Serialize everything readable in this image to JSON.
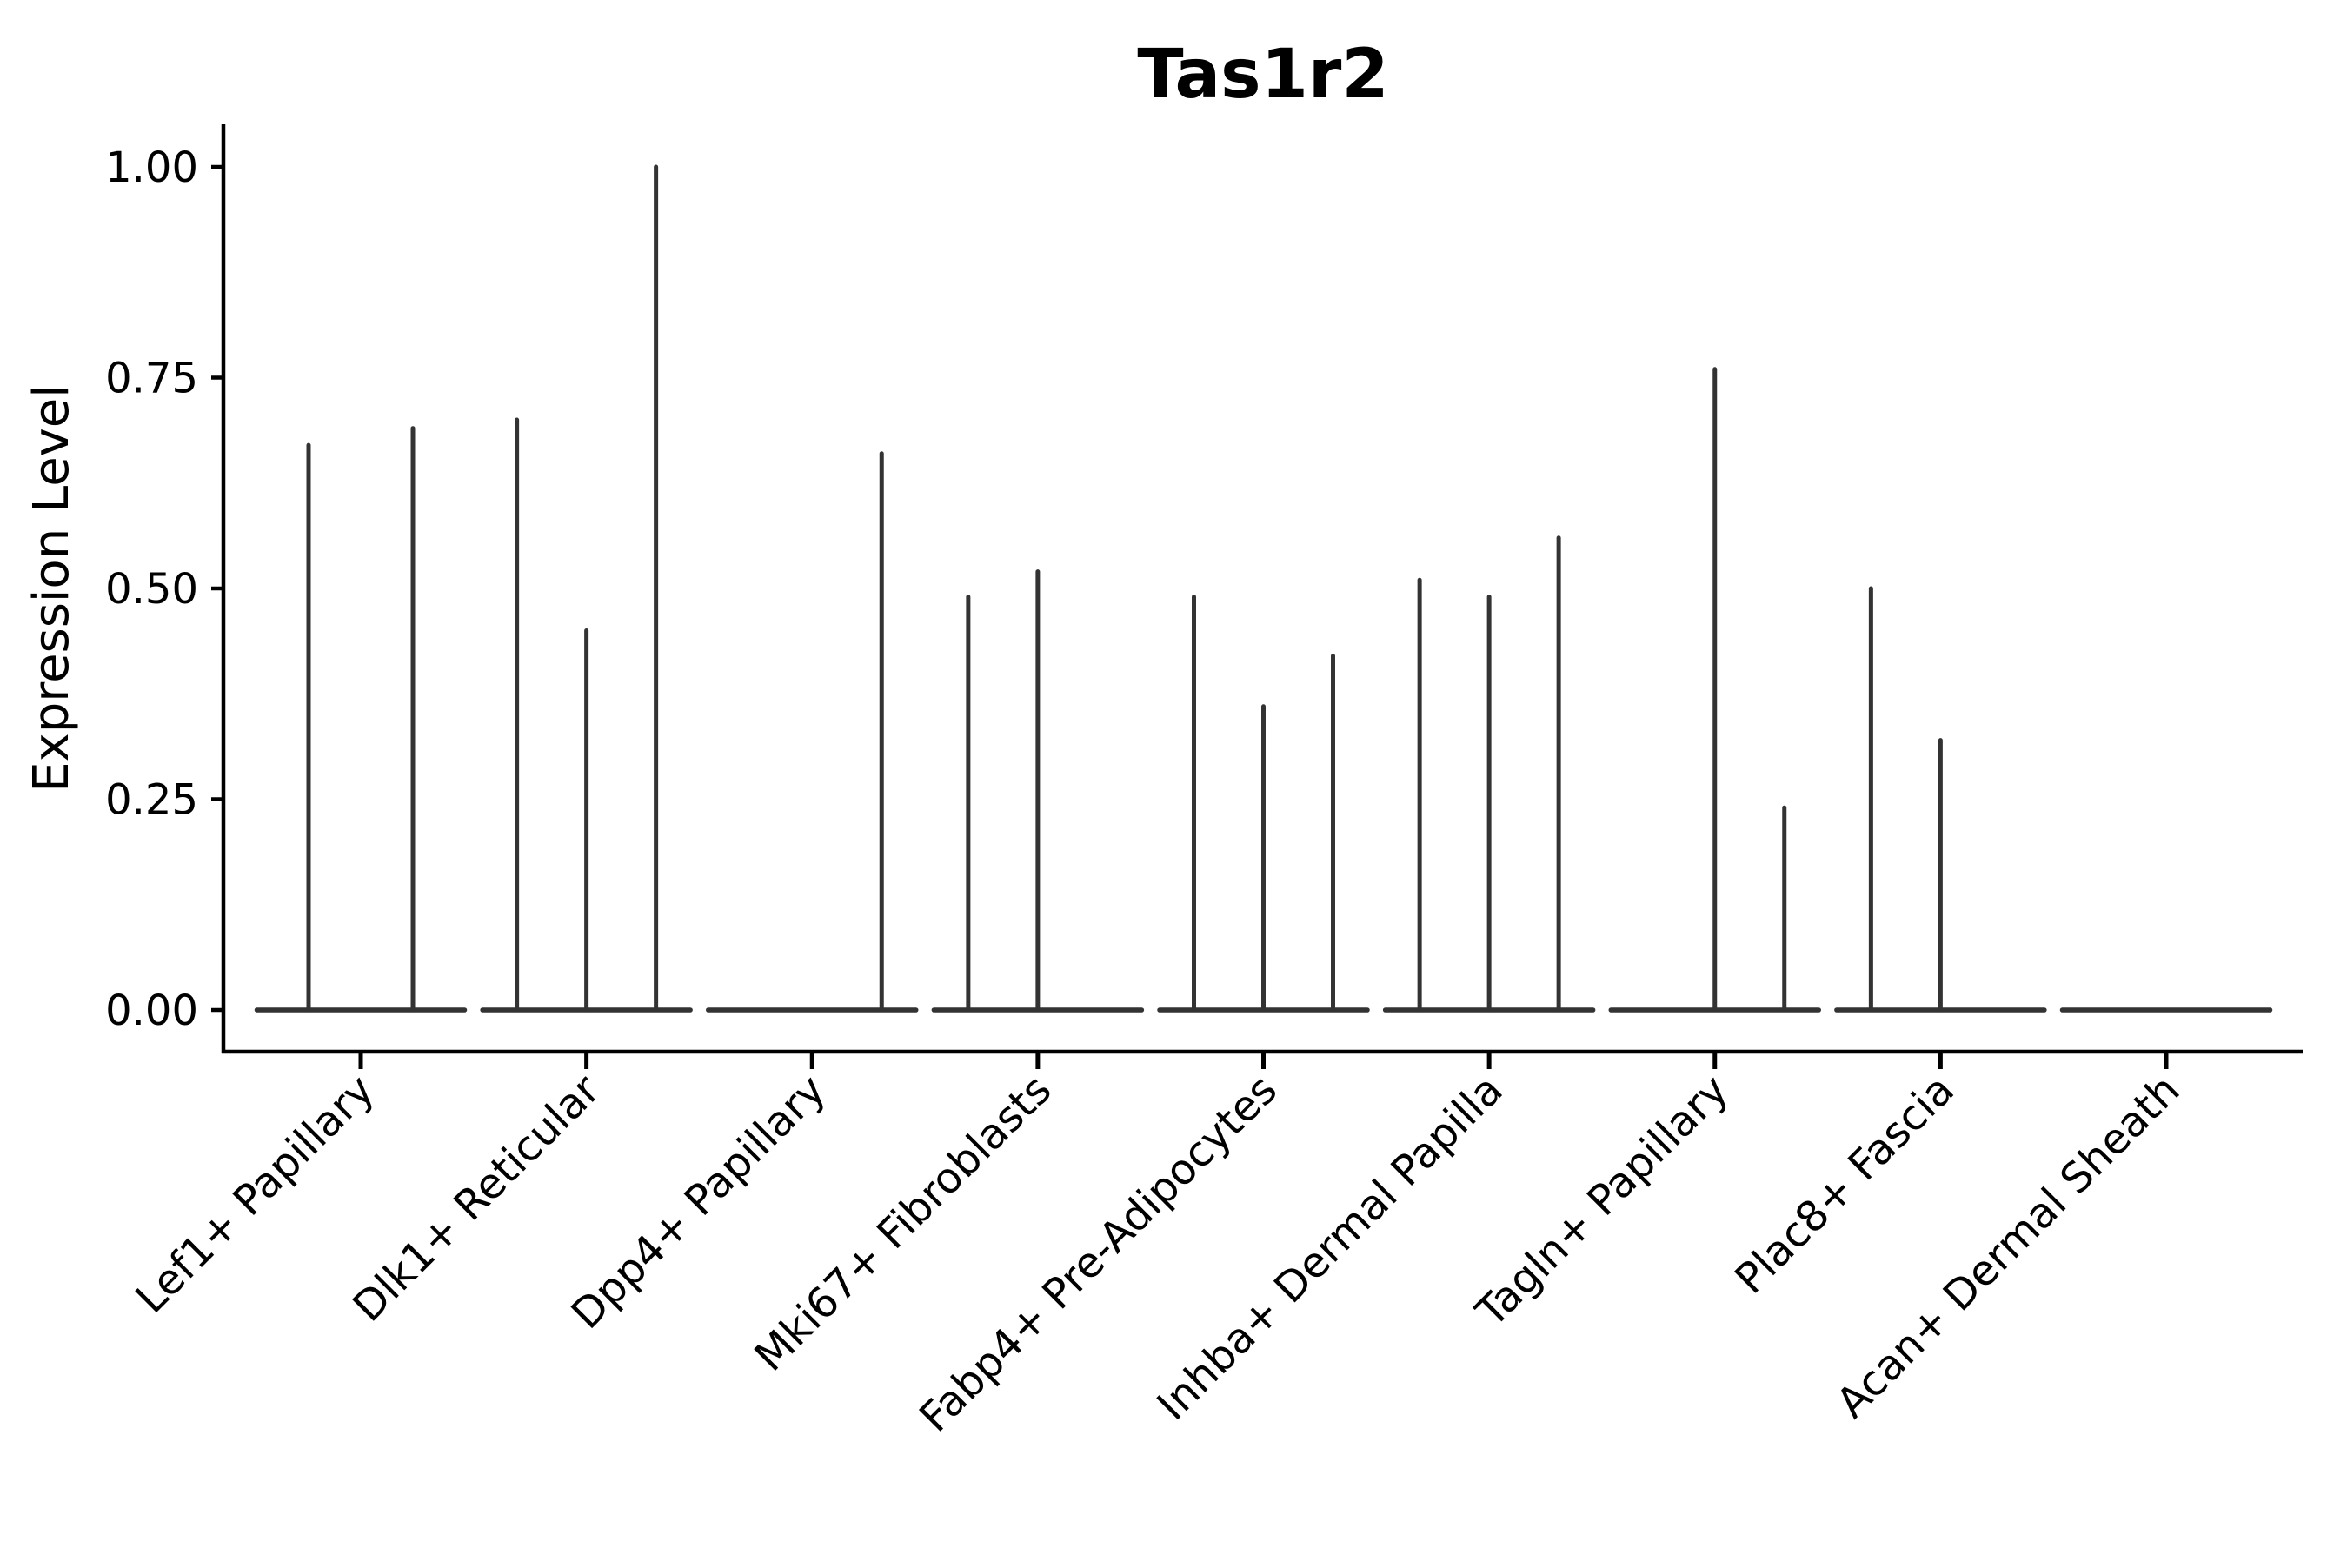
{
  "chart_data": {
    "type": "violin",
    "title": "Tas1r2",
    "ylabel": "Expression Level",
    "xlabel": "",
    "ylim": [
      0,
      1.05
    ],
    "ytick_labels": [
      "0.00",
      "0.25",
      "0.50",
      "0.75",
      "1.00"
    ],
    "ytick_values": [
      0,
      0.25,
      0.5,
      0.75,
      1.0
    ],
    "grid": false,
    "legend_position": "none",
    "colors": {
      "violin": "#333333",
      "axis": "#000000",
      "text": "#000000",
      "background": "#ffffff"
    },
    "categories": [
      "Lef1+ Papillary",
      "Dlk1+ Reticular",
      "Dpp4+ Papillary",
      "Mki67+ Fibroblasts",
      "Fabp4+ Pre-Adipocytes",
      "Inhba+ Dermal Papilla",
      "Tagln+ Papillary",
      "Plac8+ Fascia",
      "Acan+ Dermal Sheath"
    ],
    "groups": [
      {
        "category": "Lef1+ Papillary",
        "spikes": [
          {
            "dx": -60,
            "value": 0.67
          },
          {
            "dx": 60,
            "value": 0.69
          }
        ]
      },
      {
        "category": "Dlk1+ Reticular",
        "spikes": [
          {
            "dx": -80,
            "value": 0.7
          },
          {
            "dx": 0,
            "value": 0.45
          },
          {
            "dx": 80,
            "value": 1.0
          }
        ]
      },
      {
        "category": "Dpp4+ Papillary",
        "spikes": [
          {
            "dx": 80,
            "value": 0.66
          }
        ]
      },
      {
        "category": "Mki67+ Fibroblasts",
        "spikes": [
          {
            "dx": -80,
            "value": 0.49
          },
          {
            "dx": 0,
            "value": 0.52
          }
        ]
      },
      {
        "category": "Fabp4+ Pre-Adipocytes",
        "spikes": [
          {
            "dx": -80,
            "value": 0.49
          },
          {
            "dx": 0,
            "value": 0.36
          },
          {
            "dx": 80,
            "value": 0.42
          }
        ]
      },
      {
        "category": "Inhba+ Dermal Papilla",
        "spikes": [
          {
            "dx": -80,
            "value": 0.51
          },
          {
            "dx": 0,
            "value": 0.49
          },
          {
            "dx": 80,
            "value": 0.56
          }
        ]
      },
      {
        "category": "Tagln+ Papillary",
        "spikes": [
          {
            "dx": 0,
            "value": 0.76
          },
          {
            "dx": 80,
            "value": 0.24
          }
        ]
      },
      {
        "category": "Plac8+ Fascia",
        "spikes": [
          {
            "dx": -80,
            "value": 0.5
          },
          {
            "dx": 0,
            "value": 0.32
          }
        ]
      },
      {
        "category": "Acan+ Dermal Sheath",
        "spikes": []
      }
    ]
  }
}
